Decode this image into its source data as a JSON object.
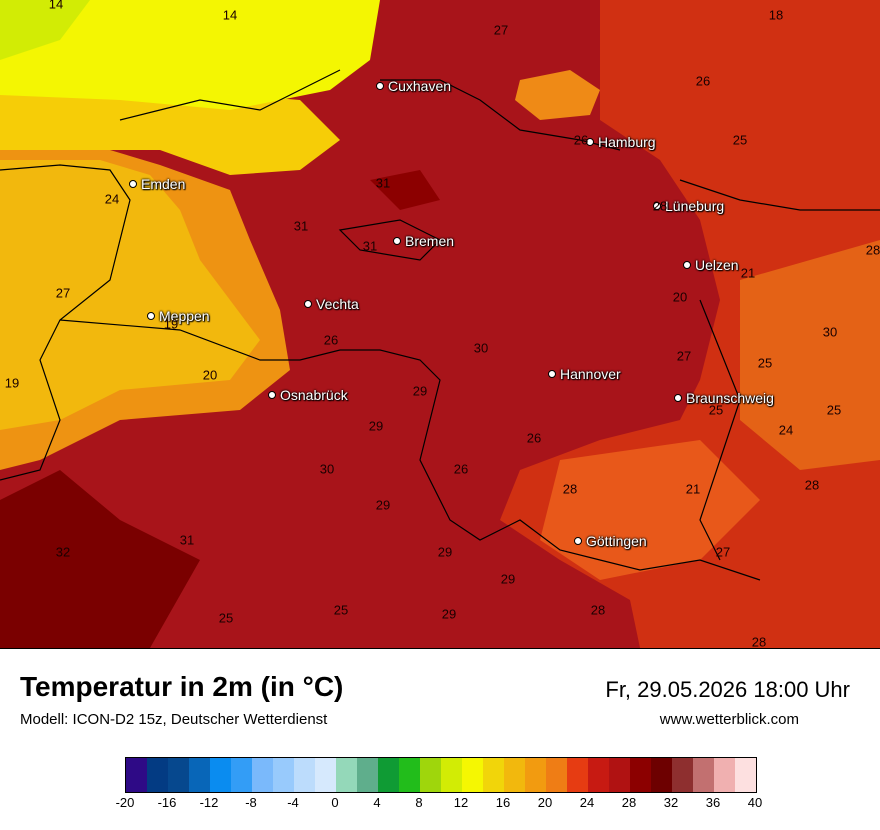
{
  "map": {
    "cities": [
      {
        "name": "Cuxhaven"
      },
      {
        "name": "Hamburg"
      },
      {
        "name": "Emden"
      },
      {
        "name": "Lüneburg"
      },
      {
        "name": "Bremen"
      },
      {
        "name": "Uelzen"
      },
      {
        "name": "Vechta"
      },
      {
        "name": "Meppen"
      },
      {
        "name": "Hannover"
      },
      {
        "name": "Osnabrück"
      },
      {
        "name": "Braunschweig"
      },
      {
        "name": "Göttingen"
      }
    ],
    "values": [
      "14",
      "14",
      "27",
      "18",
      "26",
      "26",
      "28",
      "25",
      "31",
      "24",
      "31",
      "31",
      "28",
      "21",
      "27",
      "19",
      "20",
      "26",
      "30",
      "30",
      "27",
      "25",
      "20",
      "29",
      "19",
      "25",
      "25",
      "29",
      "24",
      "26",
      "26",
      "30",
      "28",
      "29",
      "21",
      "28",
      "32",
      "31",
      "29",
      "27",
      "29",
      "25",
      "29",
      "28",
      "28",
      "25"
    ]
  },
  "footer": {
    "title": "Temperatur in 2m (in °C)",
    "model": "Modell: ICON-D2 15z, Deutscher Wetterdienst",
    "datetime": "Fr, 29.05.2026 18:00 Uhr",
    "website": "www.wetterblick.com"
  },
  "legend": {
    "colors": [
      "#2e0a86",
      "#033b83",
      "#06488e",
      "#0866b8",
      "#0a8cf0",
      "#339df6",
      "#7ab9fb",
      "#98cafc",
      "#bcdcfc",
      "#d6e9fd",
      "#94d8b9",
      "#5fae8c",
      "#0f9b34",
      "#22bd1b",
      "#9fd60c",
      "#d2ec05",
      "#f5f702",
      "#f1d50a",
      "#f2b80d",
      "#f29b10",
      "#ef7d15",
      "#e63c12",
      "#c71a12",
      "#b01212",
      "#8c0000",
      "#6d0000",
      "#8e2f2f",
      "#c27070",
      "#f0b0b0",
      "#fde0e0"
    ],
    "ticks": [
      "-20",
      "-16",
      "-12",
      "-8",
      "-4",
      "0",
      "4",
      "8",
      "12",
      "16",
      "20",
      "24",
      "28",
      "32",
      "36",
      "40"
    ]
  }
}
